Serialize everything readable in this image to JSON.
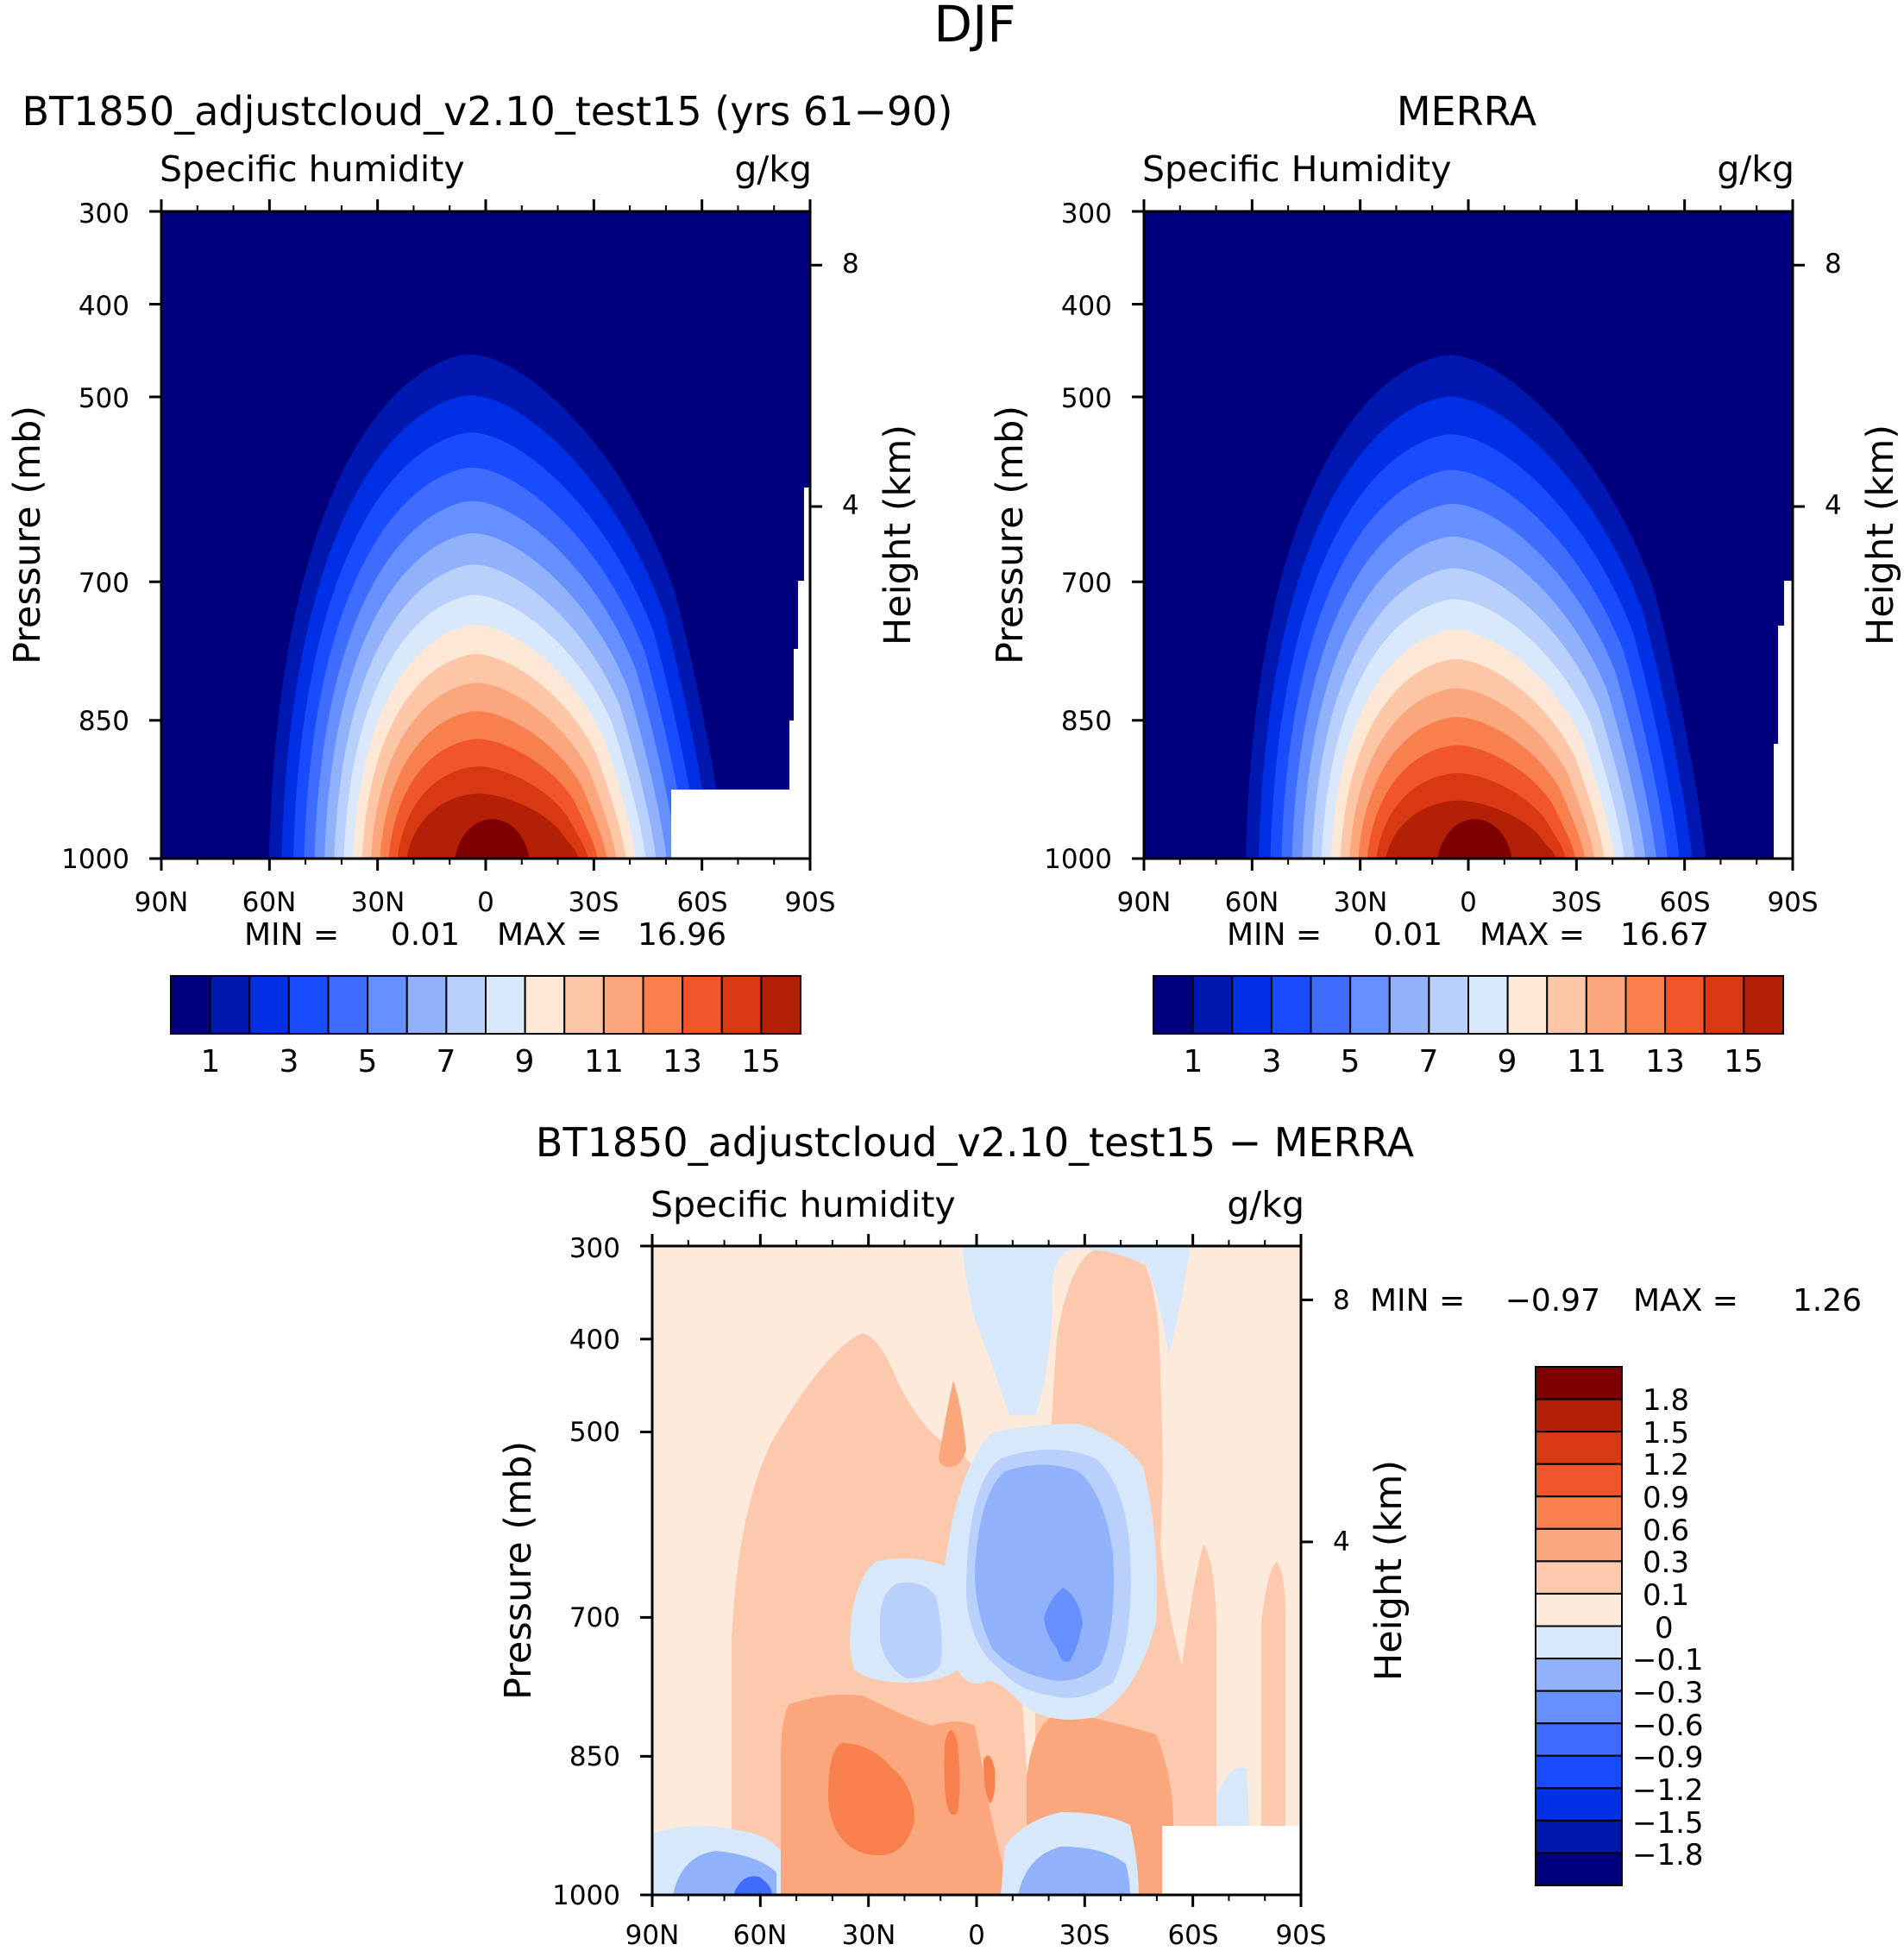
{
  "page_title": "DJF",
  "chart_data": [
    {
      "type": "heatmap",
      "id": "model",
      "title": "BT1850_adjustcloud_v2.10_test15 (yrs 61-90)",
      "variable": "Specific humidity",
      "units": "g/kg",
      "ylabel": "Pressure (mb)",
      "ylabel_right": "Height (km)",
      "x_ticks": [
        "90N",
        "60N",
        "30N",
        "0",
        "30S",
        "60S",
        "90S"
      ],
      "y_ticks": [
        "300",
        "400",
        "500",
        "700",
        "850",
        "1000"
      ],
      "y_ticks_right": [
        "8",
        "4"
      ],
      "min_label": "MIN =",
      "min_value": "0.01",
      "max_label": "MAX =",
      "max_value": "16.96",
      "max_value_num": 16.96,
      "contour_levels": [
        1,
        2,
        3,
        4,
        5,
        6,
        7,
        8,
        9,
        10,
        11,
        12,
        13,
        14,
        15
      ],
      "colorbar_labels": [
        "1",
        "3",
        "5",
        "7",
        "9",
        "11",
        "13",
        "15"
      ]
    },
    {
      "type": "heatmap",
      "id": "obs",
      "title": "MERRA",
      "variable": "Specific Humidity",
      "units": "g/kg",
      "ylabel": "Pressure (mb)",
      "ylabel_right": "Height (km)",
      "x_ticks": [
        "90N",
        "60N",
        "30N",
        "0",
        "30S",
        "60S",
        "90S"
      ],
      "y_ticks": [
        "300",
        "400",
        "500",
        "700",
        "850",
        "1000"
      ],
      "y_ticks_right": [
        "8",
        "4"
      ],
      "min_label": "MIN =",
      "min_value": "0.01",
      "max_label": "MAX =",
      "max_value": "16.67",
      "max_value_num": 16.67,
      "contour_levels": [
        1,
        2,
        3,
        4,
        5,
        6,
        7,
        8,
        9,
        10,
        11,
        12,
        13,
        14,
        15
      ],
      "colorbar_labels": [
        "1",
        "3",
        "5",
        "7",
        "9",
        "11",
        "13",
        "15"
      ]
    },
    {
      "type": "heatmap",
      "id": "diff",
      "title": "BT1850_adjustcloud_v2.10_test15 - MERRA",
      "variable": "Specific humidity",
      "units": "g/kg",
      "ylabel": "Pressure (mb)",
      "ylabel_right": "Height (km)",
      "x_ticks": [
        "90N",
        "60N",
        "30N",
        "0",
        "30S",
        "60S",
        "90S"
      ],
      "y_ticks": [
        "300",
        "400",
        "500",
        "700",
        "850",
        "1000"
      ],
      "y_ticks_right": [
        "8",
        "4"
      ],
      "min_label": "MIN =",
      "min_value": "-0.97",
      "max_label": "MAX =",
      "max_value": "1.26",
      "contour_levels": [
        -1.8,
        -1.5,
        -1.2,
        -0.9,
        -0.6,
        -0.3,
        -0.1,
        0,
        0.1,
        0.3,
        0.6,
        0.9,
        1.2,
        1.5,
        1.8
      ],
      "colorbar_labels": [
        "1.8",
        "1.5",
        "1.2",
        "0.9",
        "0.6",
        "0.3",
        "0.1",
        "0",
        "-0.1",
        "-0.3",
        "-0.6",
        "-0.9",
        "-1.2",
        "-1.5",
        "-1.8"
      ]
    }
  ],
  "colors": {
    "sequential": [
      "#00007f",
      "#0018b0",
      "#0030e6",
      "#1a4cff",
      "#3d6cff",
      "#6690ff",
      "#91b2fb",
      "#b9cffc",
      "#dae8fb",
      "#fde8d6",
      "#fdc6a7",
      "#fba67d",
      "#f8804f",
      "#f1552a",
      "#d83912",
      "#b32006",
      "#7f0000"
    ],
    "diverging": [
      "#00007f",
      "#0018b0",
      "#0030e6",
      "#1a4cff",
      "#3d6cff",
      "#6690ff",
      "#91b2fb",
      "#d8e8fb",
      "#feeadb",
      "#fcc9ac",
      "#fba67d",
      "#f8804f",
      "#f1552a",
      "#d83912",
      "#b32006",
      "#7f0000"
    ]
  }
}
